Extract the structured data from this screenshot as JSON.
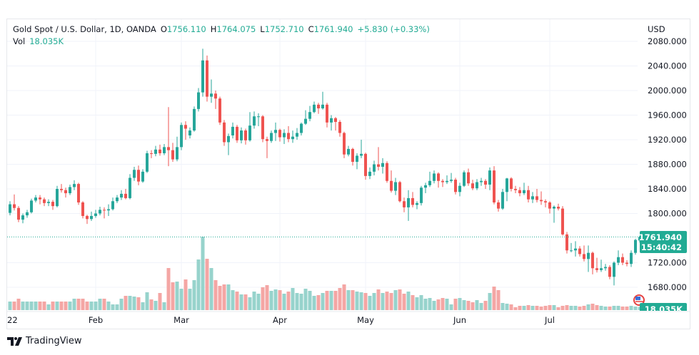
{
  "header": {
    "symbol": "Gold Spot / U.S. Dollar, 1D, OANDA",
    "open_label": "O",
    "open": "1756.110",
    "high_label": "H",
    "high": "1764.075",
    "low_label": "L",
    "low": "1752.710",
    "close_label": "C",
    "close": "1761.940",
    "change": "+5.830 (+0.33%)",
    "vol_label": "Vol",
    "vol": "18.035K"
  },
  "currency": "USD",
  "last_price_badge": {
    "price": "1761.940",
    "countdown": "15:40:42"
  },
  "volume_badge": "18.035K",
  "branding": "TradingView",
  "colors": {
    "up": "#26a69a",
    "down": "#ef5350",
    "up_volume": "#97d3cc",
    "down_volume": "#f4a6a4",
    "badge": "#22ab94"
  },
  "chart_data": {
    "type": "candlestick",
    "title": "Gold Spot / U.S. Dollar, 1D, OANDA",
    "ylabel": "USD",
    "ylim": [
      1650,
      2090
    ],
    "y_ticks": [
      "2080.000",
      "2040.000",
      "2000.000",
      "1960.000",
      "1920.000",
      "1880.000",
      "1840.000",
      "1800.000",
      "1720.000",
      "1680.000"
    ],
    "y_tick_values": [
      2080,
      2040,
      2000,
      1960,
      1920,
      1880,
      1840,
      1800,
      1720,
      1680
    ],
    "x_ticks": [
      {
        "label": "22",
        "index": 0
      },
      {
        "label": "Feb",
        "index": 20
      },
      {
        "label": "Mar",
        "index": 40
      },
      {
        "label": "Apr",
        "index": 63
      },
      {
        "label": "May",
        "index": 83
      },
      {
        "label": "Jun",
        "index": 105
      },
      {
        "label": "Jul",
        "index": 126
      }
    ],
    "last_price": 1761.94,
    "ohlc": [
      [
        1801,
        1820,
        1797,
        1815
      ],
      [
        1815,
        1831,
        1805,
        1809
      ],
      [
        1809,
        1812,
        1786,
        1790
      ],
      [
        1790,
        1800,
        1784,
        1797
      ],
      [
        1797,
        1806,
        1793,
        1802
      ],
      [
        1802,
        1824,
        1800,
        1821
      ],
      [
        1821,
        1830,
        1818,
        1826
      ],
      [
        1826,
        1830,
        1815,
        1823
      ],
      [
        1823,
        1826,
        1812,
        1817
      ],
      [
        1817,
        1823,
        1812,
        1819
      ],
      [
        1819,
        1822,
        1806,
        1812
      ],
      [
        1812,
        1845,
        1810,
        1840
      ],
      [
        1840,
        1848,
        1834,
        1838
      ],
      [
        1838,
        1842,
        1826,
        1833
      ],
      [
        1833,
        1847,
        1830,
        1843
      ],
      [
        1843,
        1854,
        1838,
        1848
      ],
      [
        1848,
        1850,
        1814,
        1818
      ],
      [
        1818,
        1820,
        1792,
        1796
      ],
      [
        1796,
        1798,
        1783,
        1791
      ],
      [
        1791,
        1803,
        1788,
        1796
      ],
      [
        1796,
        1806,
        1793,
        1800
      ],
      [
        1800,
        1811,
        1797,
        1806
      ],
      [
        1806,
        1810,
        1792,
        1805
      ],
      [
        1805,
        1815,
        1796,
        1807
      ],
      [
        1807,
        1826,
        1805,
        1820
      ],
      [
        1820,
        1830,
        1817,
        1826
      ],
      [
        1826,
        1838,
        1822,
        1832
      ],
      [
        1832,
        1840,
        1823,
        1825
      ],
      [
        1825,
        1864,
        1823,
        1858
      ],
      [
        1858,
        1876,
        1853,
        1871
      ],
      [
        1871,
        1878,
        1846,
        1852
      ],
      [
        1852,
        1872,
        1850,
        1868
      ],
      [
        1868,
        1902,
        1866,
        1898
      ],
      [
        1898,
        1903,
        1890,
        1897
      ],
      [
        1897,
        1910,
        1893,
        1904
      ],
      [
        1904,
        1912,
        1894,
        1898
      ],
      [
        1898,
        1913,
        1895,
        1908
      ],
      [
        1908,
        1973,
        1877,
        1903
      ],
      [
        1903,
        1915,
        1884,
        1888
      ],
      [
        1888,
        1925,
        1885,
        1908
      ],
      [
        1908,
        1948,
        1903,
        1944
      ],
      [
        1944,
        1950,
        1920,
        1938
      ],
      [
        1927,
        1940,
        1922,
        1935
      ],
      [
        1935,
        1974,
        1933,
        1970
      ],
      [
        1970,
        2004,
        1966,
        1997
      ],
      [
        1997,
        2068,
        1990,
        2049
      ],
      [
        2049,
        2057,
        1982,
        1990
      ],
      [
        1990,
        2018,
        1980,
        1995
      ],
      [
        1995,
        2000,
        1970,
        1987
      ],
      [
        1987,
        1990,
        1944,
        1948
      ],
      [
        1948,
        1952,
        1910,
        1916
      ],
      [
        1916,
        1930,
        1895,
        1926
      ],
      [
        1927,
        1948,
        1922,
        1941
      ],
      [
        1941,
        1944,
        1915,
        1919
      ],
      [
        1919,
        1940,
        1914,
        1935
      ],
      [
        1935,
        1938,
        1912,
        1919
      ],
      [
        1919,
        1965,
        1917,
        1943
      ],
      [
        1943,
        1966,
        1938,
        1958
      ],
      [
        1958,
        1963,
        1942,
        1958
      ],
      [
        1958,
        1960,
        1916,
        1921
      ],
      [
        1921,
        1925,
        1890,
        1918
      ],
      [
        1918,
        1935,
        1915,
        1931
      ],
      [
        1931,
        1948,
        1918,
        1936
      ],
      [
        1936,
        1938,
        1917,
        1924
      ],
      [
        1924,
        1937,
        1913,
        1931
      ],
      [
        1931,
        1942,
        1916,
        1921
      ],
      [
        1921,
        1935,
        1915,
        1925
      ],
      [
        1925,
        1939,
        1920,
        1931
      ],
      [
        1931,
        1948,
        1927,
        1946
      ],
      [
        1946,
        1968,
        1944,
        1954
      ],
      [
        1954,
        1975,
        1950,
        1965
      ],
      [
        1965,
        1982,
        1963,
        1977
      ],
      [
        1977,
        1980,
        1962,
        1971
      ],
      [
        1971,
        1998,
        1969,
        1977
      ],
      [
        1977,
        1980,
        1940,
        1948
      ],
      [
        1948,
        1960,
        1935,
        1955
      ],
      [
        1955,
        1957,
        1935,
        1949
      ],
      [
        1949,
        1952,
        1925,
        1931
      ],
      [
        1931,
        1933,
        1890,
        1896
      ],
      [
        1896,
        1910,
        1893,
        1905
      ],
      [
        1905,
        1907,
        1878,
        1884
      ],
      [
        1884,
        1898,
        1872,
        1894
      ],
      [
        1894,
        1920,
        1890,
        1897
      ],
      [
        1897,
        1899,
        1855,
        1861
      ],
      [
        1861,
        1875,
        1856,
        1868
      ],
      [
        1868,
        1886,
        1862,
        1880
      ],
      [
        1880,
        1908,
        1870,
        1876
      ],
      [
        1876,
        1890,
        1865,
        1882
      ],
      [
        1882,
        1885,
        1850,
        1853
      ],
      [
        1853,
        1870,
        1834,
        1837
      ],
      [
        1837,
        1858,
        1830,
        1851
      ],
      [
        1851,
        1853,
        1818,
        1820
      ],
      [
        1820,
        1826,
        1802,
        1810
      ],
      [
        1810,
        1838,
        1788,
        1825
      ],
      [
        1825,
        1835,
        1810,
        1814
      ],
      [
        1814,
        1820,
        1807,
        1817
      ],
      [
        1817,
        1845,
        1813,
        1842
      ],
      [
        1842,
        1850,
        1833,
        1846
      ],
      [
        1846,
        1868,
        1843,
        1853
      ],
      [
        1853,
        1870,
        1849,
        1865
      ],
      [
        1865,
        1867,
        1842,
        1853
      ],
      [
        1853,
        1856,
        1843,
        1851
      ],
      [
        1851,
        1862,
        1848,
        1853
      ],
      [
        1853,
        1866,
        1850,
        1855
      ],
      [
        1855,
        1858,
        1831,
        1835
      ],
      [
        1835,
        1850,
        1828,
        1845
      ],
      [
        1845,
        1870,
        1843,
        1867
      ],
      [
        1867,
        1873,
        1845,
        1849
      ],
      [
        1849,
        1855,
        1838,
        1841
      ],
      [
        1841,
        1856,
        1838,
        1851
      ],
      [
        1851,
        1858,
        1845,
        1853
      ],
      [
        1853,
        1856,
        1840,
        1847
      ],
      [
        1847,
        1875,
        1838,
        1870
      ],
      [
        1870,
        1877,
        1815,
        1818
      ],
      [
        1818,
        1822,
        1803,
        1808
      ],
      [
        1808,
        1840,
        1806,
        1835
      ],
      [
        1835,
        1858,
        1820,
        1857
      ],
      [
        1857,
        1859,
        1836,
        1840
      ],
      [
        1840,
        1845,
        1833,
        1838
      ],
      [
        1838,
        1843,
        1828,
        1833
      ],
      [
        1833,
        1850,
        1830,
        1838
      ],
      [
        1838,
        1845,
        1818,
        1823
      ],
      [
        1823,
        1835,
        1817,
        1828
      ],
      [
        1828,
        1840,
        1818,
        1822
      ],
      [
        1822,
        1836,
        1814,
        1820
      ],
      [
        1820,
        1823,
        1810,
        1818
      ],
      [
        1818,
        1820,
        1800,
        1808
      ],
      [
        1808,
        1813,
        1785,
        1811
      ],
      [
        1811,
        1816,
        1805,
        1808
      ],
      [
        1808,
        1812,
        1764,
        1766
      ],
      [
        1766,
        1770,
        1735,
        1740
      ],
      [
        1740,
        1752,
        1737,
        1740
      ],
      [
        1740,
        1755,
        1730,
        1743
      ],
      [
        1743,
        1747,
        1730,
        1734
      ],
      [
        1734,
        1748,
        1722,
        1726
      ],
      [
        1726,
        1748,
        1705,
        1736
      ],
      [
        1736,
        1738,
        1701,
        1711
      ],
      [
        1711,
        1728,
        1704,
        1708
      ],
      [
        1708,
        1725,
        1705,
        1711
      ],
      [
        1711,
        1718,
        1707,
        1713
      ],
      [
        1713,
        1716,
        1693,
        1697
      ],
      [
        1697,
        1722,
        1683,
        1720
      ],
      [
        1720,
        1740,
        1716,
        1729
      ],
      [
        1729,
        1735,
        1716,
        1720
      ],
      [
        1720,
        1724,
        1714,
        1718
      ],
      [
        1718,
        1740,
        1713,
        1736
      ],
      [
        1736,
        1759,
        1733,
        1757
      ],
      [
        1756.11,
        1764.075,
        1752.71,
        1761.94
      ]
    ],
    "volume_k": [
      48,
      48,
      64,
      48,
      48,
      48,
      48,
      48,
      48,
      32,
      48,
      48,
      48,
      48,
      48,
      64,
      64,
      64,
      48,
      48,
      48,
      64,
      64,
      48,
      32,
      32,
      64,
      80,
      80,
      76,
      72,
      44,
      100,
      60,
      52,
      96,
      44,
      236,
      156,
      160,
      120,
      172,
      120,
      168,
      284,
      412,
      288,
      236,
      168,
      136,
      144,
      144,
      112,
      104,
      88,
      88,
      72,
      104,
      92,
      128,
      140,
      108,
      116,
      112,
      92,
      104,
      124,
      96,
      92,
      120,
      108,
      80,
      84,
      96,
      108,
      108,
      108,
      124,
      144,
      112,
      112,
      104,
      100,
      96,
      80,
      96,
      116,
      96,
      104,
      96,
      112,
      116,
      92,
      104,
      84,
      72,
      84,
      64,
      68,
      52,
      60,
      68,
      64,
      32,
      64,
      68,
      56,
      52,
      44,
      56,
      40,
      52,
      96,
      132,
      112,
      40,
      36,
      32,
      16,
      24,
      24,
      28,
      24,
      24,
      20,
      24,
      28,
      28,
      16,
      24,
      28,
      24,
      24,
      20,
      24,
      32,
      36,
      28,
      24,
      20,
      20,
      24,
      24,
      20,
      20,
      24,
      20,
      18.035
    ]
  }
}
